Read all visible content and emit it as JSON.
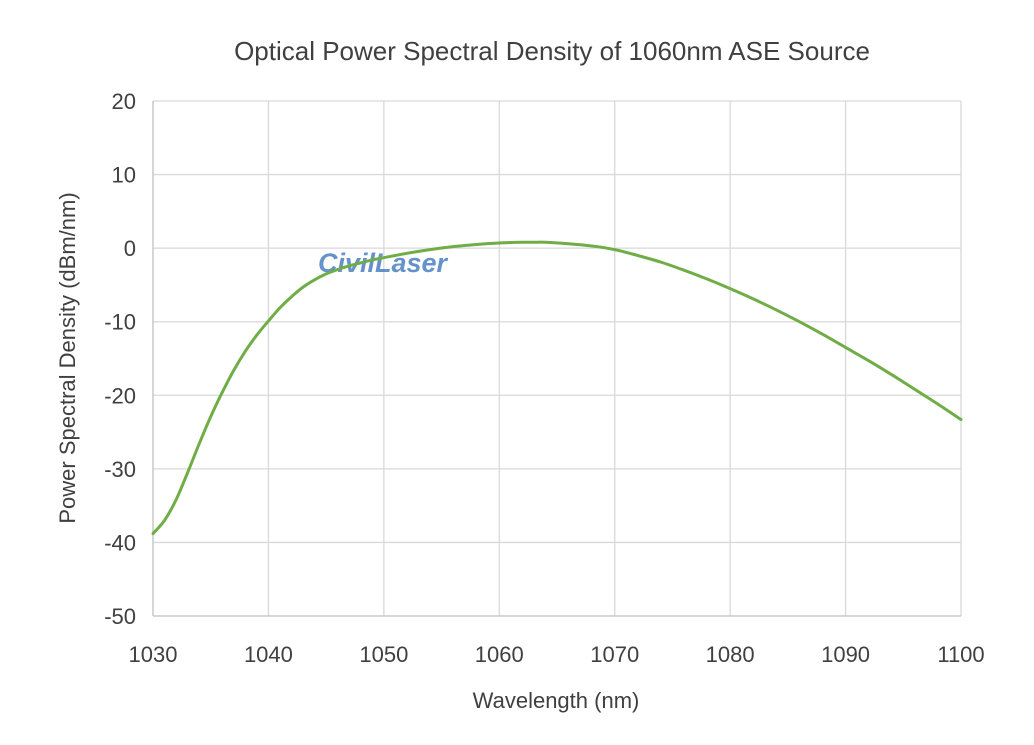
{
  "chart_data": {
    "type": "line",
    "title": "Optical Power Spectral Density of 1060nm ASE Source",
    "xlabel": "Wavelength (nm)",
    "ylabel": "Power Spectral Density (dBm/nm)",
    "xlim": [
      1030,
      1100
    ],
    "ylim": [
      -50,
      20
    ],
    "x_ticks": [
      1030,
      1040,
      1050,
      1060,
      1070,
      1080,
      1090,
      1100
    ],
    "y_ticks": [
      -50,
      -40,
      -30,
      -20,
      -10,
      0,
      10,
      20
    ],
    "x_tick_labels": [
      "1030",
      "1040",
      "1050",
      "1060",
      "1070",
      "1080",
      "1090",
      "1100"
    ],
    "y_tick_labels": [
      "-50",
      "-40",
      "-30",
      "-20",
      "-10",
      "0",
      "10",
      "20"
    ],
    "grid": true,
    "legend": "none",
    "series": [
      {
        "color": "#70ad47",
        "x": [
          1030,
          1031,
          1032,
          1033,
          1034,
          1035,
          1036,
          1037,
          1038,
          1039,
          1040,
          1041,
          1042,
          1043,
          1044,
          1045,
          1046,
          1047,
          1048,
          1049,
          1050,
          1052,
          1054,
          1056,
          1058,
          1060,
          1062,
          1063,
          1064,
          1066,
          1068,
          1070,
          1072,
          1074,
          1076,
          1078,
          1080,
          1082,
          1084,
          1086,
          1088,
          1090,
          1092,
          1094,
          1096,
          1098,
          1100
        ],
        "y": [
          -38.8,
          -37.0,
          -34.2,
          -30.5,
          -26.6,
          -22.9,
          -19.6,
          -16.6,
          -14.0,
          -11.8,
          -9.9,
          -8.1,
          -6.6,
          -5.3,
          -4.3,
          -3.5,
          -2.9,
          -2.4,
          -2.0,
          -1.6,
          -1.3,
          -0.7,
          -0.2,
          0.2,
          0.5,
          0.7,
          0.8,
          0.8,
          0.8,
          0.6,
          0.3,
          -0.2,
          -1.0,
          -1.9,
          -3.0,
          -4.2,
          -5.5,
          -6.9,
          -8.4,
          -10.0,
          -11.7,
          -13.5,
          -15.3,
          -17.2,
          -19.2,
          -21.2,
          -23.3
        ]
      }
    ]
  },
  "watermark": {
    "text": "CivilLaser",
    "color": "#4a7fc1"
  }
}
